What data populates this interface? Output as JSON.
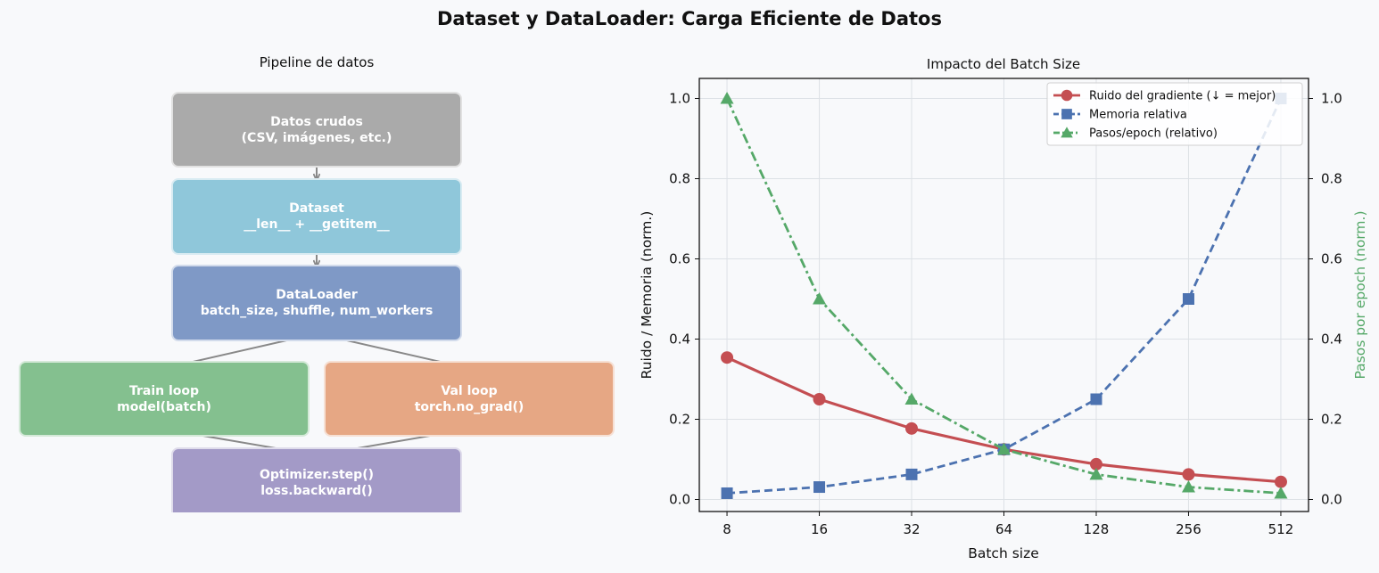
{
  "title": "Dataset y DataLoader: Carga Eficiente de Datos",
  "pipeline": {
    "title": "Pipeline de datos",
    "boxes": [
      {
        "id": "raw",
        "line1": "Datos crudos",
        "line2": "(CSV, imágenes, etc.)",
        "color": "#aaaaaa"
      },
      {
        "id": "dataset",
        "line1": "Dataset",
        "line2": "__len__ + __getitem__",
        "color": "#8fc7da"
      },
      {
        "id": "dataloader",
        "line1": "DataLoader",
        "line2": "batch_size, shuffle, num_workers",
        "color": "#7f99c6"
      },
      {
        "id": "train",
        "line1": "Train loop",
        "line2": "model(batch)",
        "color": "#84c08f"
      },
      {
        "id": "val",
        "line1": "Val loop",
        "line2": "torch.no_grad()",
        "color": "#e6a784"
      },
      {
        "id": "optimizer",
        "line1": "Optimizer.step()",
        "line2": "loss.backward()",
        "color": "#a39ac7"
      }
    ]
  },
  "chart_data": {
    "type": "line",
    "title": "Impacto del Batch Size",
    "xlabel": "Batch size",
    "ylabel": "Ruido / Memoria (norm.)",
    "y2label": "Pasos por epoch (norm.)",
    "x_scale": "log2",
    "categories": [
      "8",
      "16",
      "32",
      "64",
      "128",
      "256",
      "512"
    ],
    "x": [
      8,
      16,
      32,
      64,
      128,
      256,
      512
    ],
    "ylim": [
      -0.03,
      1.05
    ],
    "y2lim": [
      -0.03,
      1.05
    ],
    "yticks": [
      "0.0",
      "0.2",
      "0.4",
      "0.6",
      "0.8",
      "1.0"
    ],
    "grid": true,
    "legend_position": "top-right",
    "series": [
      {
        "name": "Ruido del gradiente (↓ = mejor)",
        "axis": "left",
        "color": "#c44e52",
        "style": "solid",
        "marker": "circle",
        "values": [
          0.354,
          0.25,
          0.177,
          0.125,
          0.088,
          0.0625,
          0.044
        ]
      },
      {
        "name": "Memoria relativa",
        "axis": "left",
        "color": "#4c72b0",
        "style": "dashed",
        "marker": "square",
        "values": [
          0.0156,
          0.031,
          0.0625,
          0.125,
          0.25,
          0.5,
          1.0
        ]
      },
      {
        "name": "Pasos/epoch (relativo)",
        "axis": "right",
        "color": "#55a868",
        "style": "dashdot",
        "marker": "triangle",
        "values": [
          1.0,
          0.5,
          0.25,
          0.125,
          0.0625,
          0.031,
          0.0156
        ]
      }
    ]
  }
}
